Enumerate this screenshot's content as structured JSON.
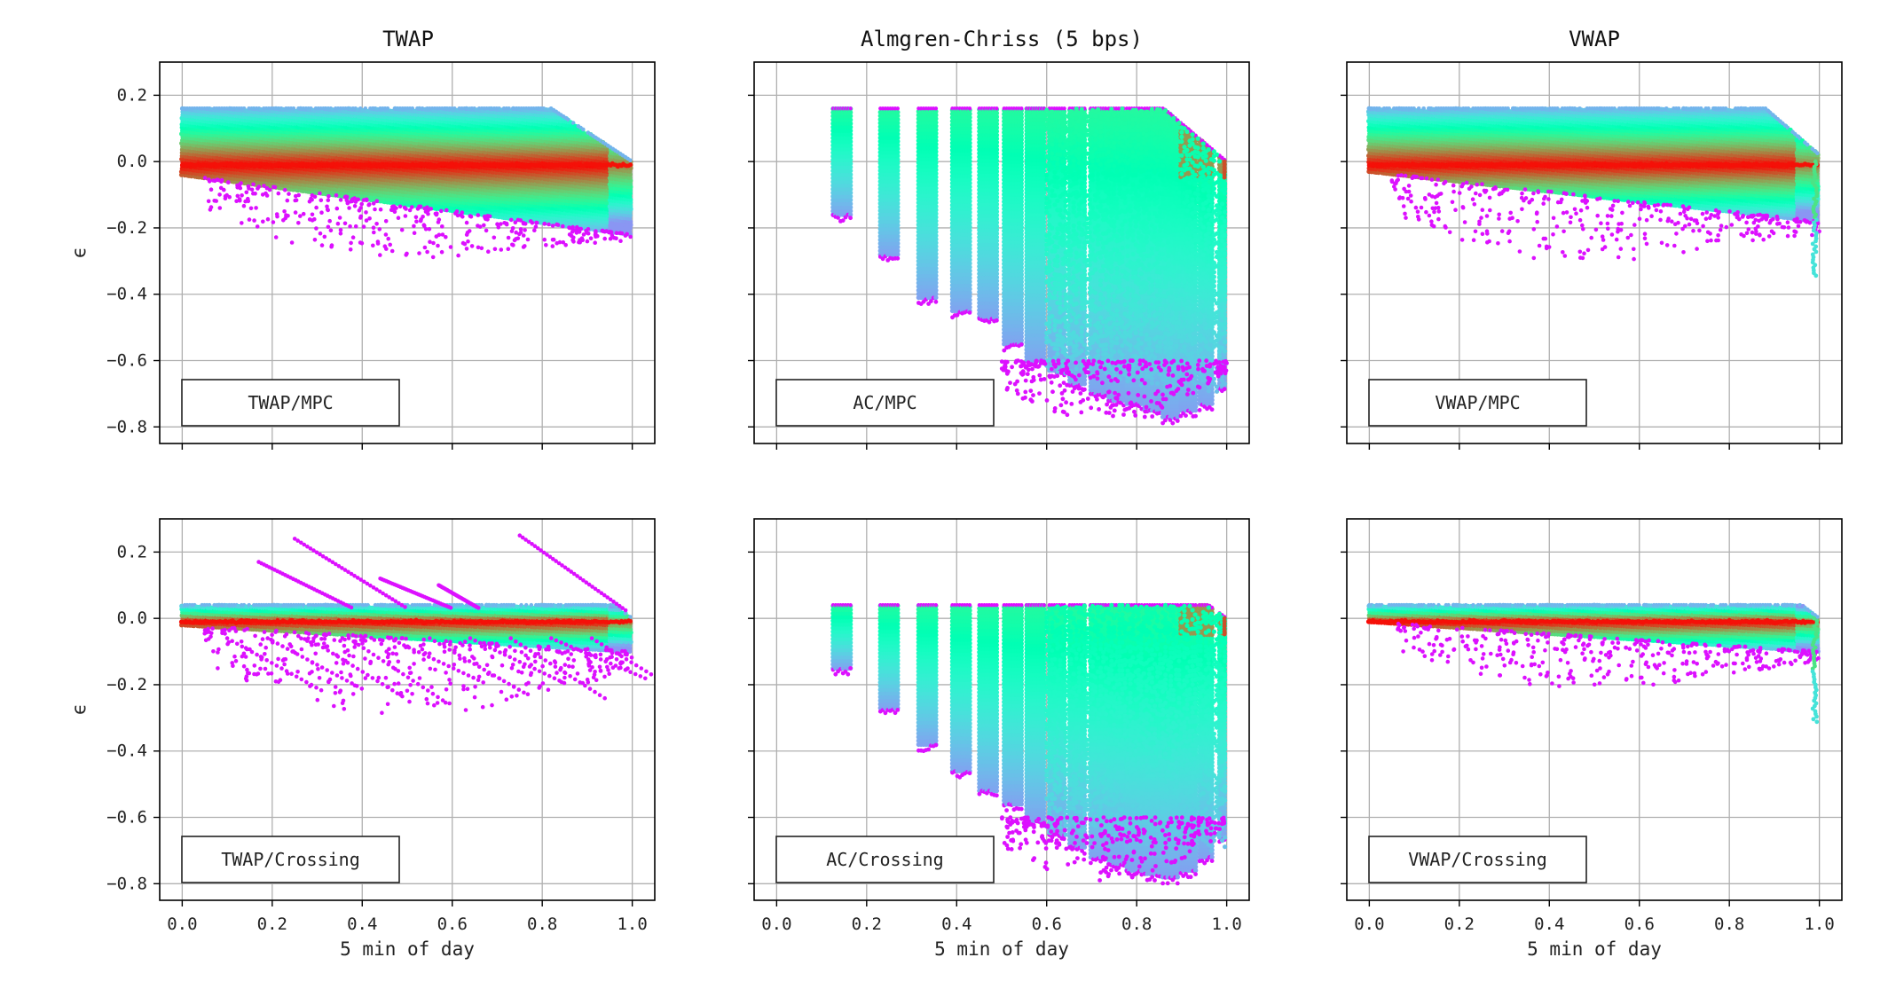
{
  "figure": {
    "column_titles": [
      "TWAP",
      "Almgren-Chriss (5 bps)",
      "VWAP"
    ],
    "xlabel": "5 min of day",
    "ylabel": "ϵ",
    "x_ticks": [
      "0.0",
      "0.2",
      "0.4",
      "0.6",
      "0.8",
      "1.0"
    ],
    "y_ticks": [
      "0.2",
      "0.0",
      "−0.2",
      "−0.4",
      "−0.6",
      "−0.8"
    ]
  },
  "colors": {
    "colormap": "rainbow",
    "low_density": "#8000ff",
    "high_density": "#ff2a00",
    "grid": "#b0b0b0",
    "axes": "#000000"
  },
  "chart_data": [
    {
      "type": "scatter",
      "row": 0,
      "col": 0,
      "title": "TWAP",
      "legend": "TWAP/MPC",
      "legend_loc": "lower left",
      "xlim": [
        -0.05,
        1.05
      ],
      "ylim": [
        -0.85,
        0.3
      ],
      "grid": true,
      "shape": "uniform",
      "ylabel": "ϵ",
      "band": {
        "upper": 0.16,
        "lower_start": -0.04,
        "lower_end": -0.22,
        "core_upper": 0.03,
        "core_lower": -0.04,
        "center": -0.01,
        "decline_start": 0.82,
        "end_value": 0.0
      },
      "outlier_min": -0.29
    },
    {
      "type": "scatter",
      "row": 0,
      "col": 1,
      "title": "Almgren-Chriss (5 bps)",
      "legend": "AC/MPC",
      "legend_loc": "lower left",
      "xlim": [
        -0.05,
        1.05
      ],
      "ylim": [
        -0.85,
        0.3
      ],
      "grid": true,
      "shape": "ac",
      "columns_x": [
        0.145,
        0.25,
        0.335,
        0.41,
        0.47,
        0.525,
        0.575,
        0.625,
        0.67,
        0.715,
        0.755,
        0.795,
        0.835,
        0.875,
        0.915,
        0.955,
        0.99
      ],
      "columns_ymin": [
        -0.16,
        -0.28,
        -0.41,
        -0.45,
        -0.47,
        -0.55,
        -0.6,
        -0.63,
        -0.67,
        -0.7,
        -0.72,
        -0.73,
        -0.75,
        -0.77,
        -0.75,
        -0.73,
        -0.68
      ],
      "upper": 0.16,
      "decline_start": 0.86,
      "end_value": 0.0,
      "outlier_min": -0.78
    },
    {
      "type": "scatter",
      "row": 0,
      "col": 2,
      "title": "VWAP",
      "legend": "VWAP/MPC",
      "legend_loc": "lower left",
      "xlim": [
        -0.05,
        1.05
      ],
      "ylim": [
        -0.85,
        0.3
      ],
      "grid": true,
      "shape": "uniform",
      "band": {
        "upper": 0.16,
        "lower_start": -0.03,
        "lower_end": -0.18,
        "core_upper": 0.04,
        "core_lower": -0.05,
        "center": -0.01,
        "decline_start": 0.88,
        "end_value": 0.02
      },
      "tail_min": -0.35,
      "outlier_min": -0.31
    },
    {
      "type": "scatter",
      "row": 1,
      "col": 0,
      "legend": "TWAP/Crossing",
      "legend_loc": "lower left",
      "xlim": [
        -0.05,
        1.05
      ],
      "ylim": [
        -0.85,
        0.3
      ],
      "grid": true,
      "shape": "uniform",
      "xlabel": "5 min of day",
      "ylabel": "ϵ",
      "band": {
        "upper": 0.04,
        "lower_start": -0.02,
        "lower_end": -0.1,
        "core_upper": 0.01,
        "core_lower": -0.03,
        "center": -0.01,
        "decline_start": 0.96,
        "end_value": 0.0
      },
      "streaks_up": [
        {
          "x0": 0.17,
          "y0": 0.17,
          "x1": 0.38,
          "y1": 0.03
        },
        {
          "x0": 0.25,
          "y0": 0.24,
          "x1": 0.5,
          "y1": 0.03
        },
        {
          "x0": 0.44,
          "y0": 0.12,
          "x1": 0.6,
          "y1": 0.03
        },
        {
          "x0": 0.57,
          "y0": 0.1,
          "x1": 0.66,
          "y1": 0.03
        },
        {
          "x0": 0.75,
          "y0": 0.25,
          "x1": 0.99,
          "y1": 0.02
        }
      ],
      "outlier_min": -0.29
    },
    {
      "type": "scatter",
      "row": 1,
      "col": 1,
      "legend": "AC/Crossing",
      "legend_loc": "lower left",
      "xlim": [
        -0.05,
        1.05
      ],
      "ylim": [
        -0.85,
        0.3
      ],
      "grid": true,
      "shape": "ac",
      "xlabel": "5 min of day",
      "columns_x": [
        0.145,
        0.25,
        0.335,
        0.41,
        0.47,
        0.525,
        0.575,
        0.625,
        0.67,
        0.715,
        0.755,
        0.795,
        0.835,
        0.875,
        0.915,
        0.955,
        0.99
      ],
      "columns_ymin": [
        -0.15,
        -0.27,
        -0.38,
        -0.46,
        -0.52,
        -0.56,
        -0.61,
        -0.65,
        -0.69,
        -0.72,
        -0.74,
        -0.76,
        -0.77,
        -0.78,
        -0.76,
        -0.72,
        -0.66
      ],
      "upper": 0.04,
      "decline_start": 0.96,
      "end_value": 0.0,
      "outlier_min": -0.79
    },
    {
      "type": "scatter",
      "row": 1,
      "col": 2,
      "legend": "VWAP/Crossing",
      "legend_loc": "lower left",
      "xlim": [
        -0.05,
        1.05
      ],
      "ylim": [
        -0.85,
        0.3
      ],
      "grid": true,
      "shape": "uniform",
      "xlabel": "5 min of day",
      "band": {
        "upper": 0.04,
        "lower_start": -0.01,
        "lower_end": -0.1,
        "core_upper": 0.01,
        "core_lower": -0.03,
        "center": -0.01,
        "decline_start": 0.96,
        "end_value": 0.0
      },
      "tail_min": -0.32,
      "outlier_min": -0.21
    }
  ]
}
